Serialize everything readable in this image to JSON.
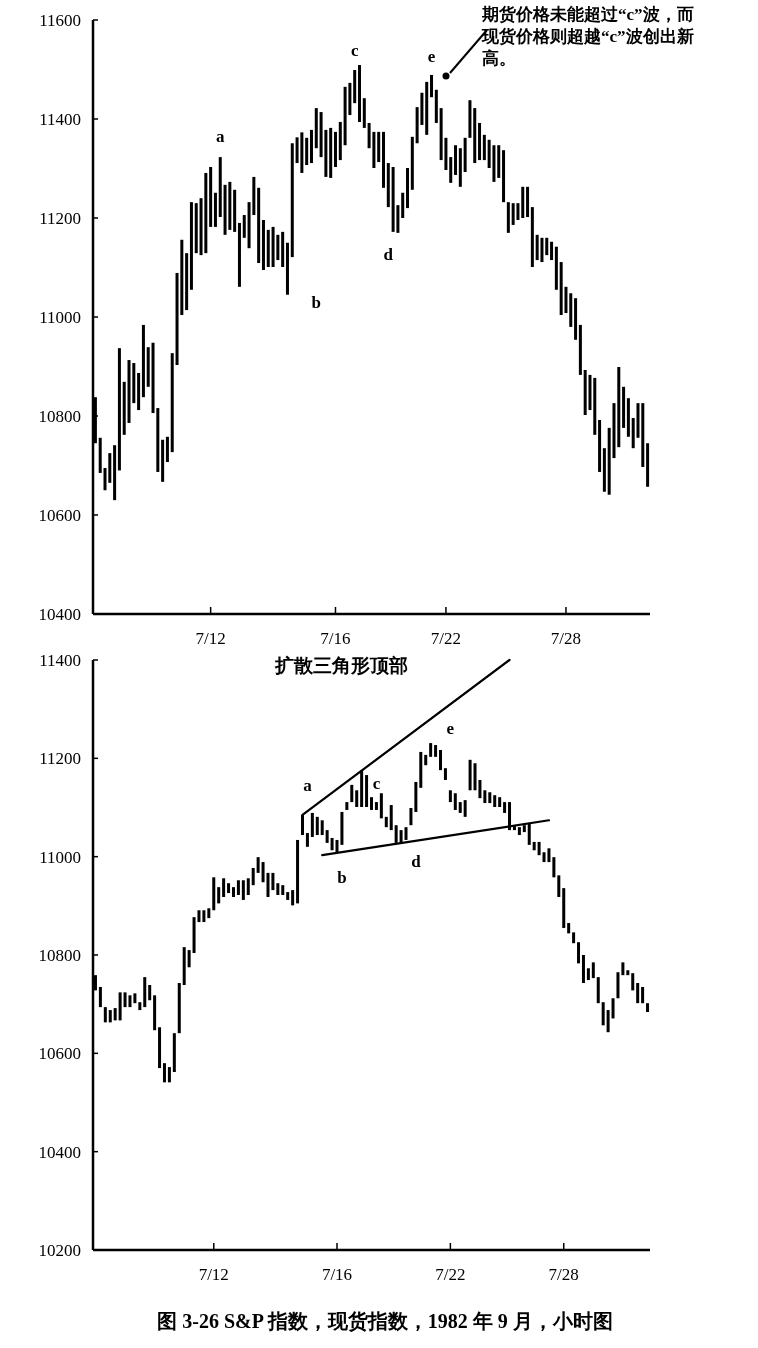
{
  "chart_data": [
    {
      "type": "bar",
      "ylim": [
        10400,
        11600
      ],
      "yticks": [
        10400,
        10600,
        10800,
        11000,
        11200,
        11400,
        11600
      ],
      "categories": [
        null,
        null,
        null,
        null,
        null,
        null,
        null,
        null,
        null,
        null,
        null,
        null,
        null,
        null,
        null,
        null,
        null,
        null,
        null,
        null,
        null,
        null,
        null,
        null,
        "7/12",
        null,
        null,
        null,
        null,
        null,
        null,
        null,
        null,
        null,
        null,
        null,
        null,
        null,
        null,
        null,
        null,
        null,
        null,
        null,
        null,
        null,
        null,
        null,
        null,
        null,
        "7/16",
        null,
        null,
        null,
        null,
        null,
        null,
        null,
        null,
        null,
        null,
        null,
        null,
        null,
        null,
        null,
        null,
        null,
        null,
        null,
        null,
        null,
        null,
        "7/22",
        null,
        null,
        null,
        null,
        null,
        null,
        null,
        null,
        null,
        null,
        null,
        null,
        null,
        null,
        null,
        null,
        null,
        null,
        null,
        null,
        null,
        null,
        null,
        null,
        "7/28",
        null,
        null,
        null,
        null,
        null,
        null,
        null,
        null,
        null,
        null,
        null,
        null,
        null,
        null,
        null,
        null,
        null
      ],
      "series": [
        {
          "color": "#000000",
          "base": [
            10745,
            10685,
            10650,
            10665,
            10630,
            10690,
            10762,
            10786,
            10826,
            10812,
            10838,
            10859,
            10806,
            10687,
            10667,
            10707,
            10727,
            10903,
            11004,
            11014,
            11055,
            11129,
            11125,
            11129,
            11182,
            11182,
            11202,
            11166,
            11176,
            11172,
            11061,
            11160,
            11139,
            11206,
            11109,
            11095,
            11101,
            11101,
            11115,
            11101,
            11045,
            11121,
            11311,
            11291,
            11307,
            11311,
            11341,
            11323,
            11283,
            11281,
            11303,
            11317,
            11347,
            11408,
            11432,
            11394,
            11382,
            11341,
            11301,
            11313,
            11261,
            11222,
            11172,
            11170,
            11200,
            11220,
            11257,
            11351,
            11388,
            11368,
            11444,
            11392,
            11317,
            11297,
            11271,
            11287,
            11263,
            11293,
            11362,
            11311,
            11317,
            11317,
            11301,
            11273,
            11281,
            11232,
            11170,
            11186,
            11196,
            11200,
            11202,
            11101,
            11115,
            11111,
            11125,
            11115,
            11055,
            11004,
            11008,
            10980,
            10954,
            10883,
            10802,
            10812,
            10762,
            10687,
            10647,
            10641,
            10715,
            10737,
            10776,
            10758,
            10735,
            10756,
            10697,
            10657
          ],
          "values": [
            93,
            71,
            45,
            60,
            111,
            247,
            107,
            127,
            81,
            75,
            146,
            80,
            142,
            129,
            85,
            51,
            200,
            186,
            152,
            115,
            177,
            101,
            115,
            162,
            121,
            69,
            121,
            101,
            97,
            85,
            129,
            46,
            93,
            77,
            152,
            101,
            75,
            81,
            51,
            71,
            105,
            230,
            52,
            82,
            55,
            67,
            81,
            91,
            95,
            101,
            71,
            77,
            118,
            65,
            67,
            115,
            60,
            51,
            73,
            61,
            113,
            89,
            131,
            56,
            51,
            81,
            107,
            73,
            65,
            107,
            45,
            67,
            105,
            65,
            52,
            60,
            78,
            69,
            76,
            111,
            75,
            51,
            57,
            74,
            66,
            105,
            62,
            44,
            34,
            63,
            61,
            121,
            51,
            49,
            35,
            37,
            87,
            107,
            53,
            68,
            84,
            101,
            91,
            71,
            115,
            105,
            88,
            135,
            111,
            162,
            83,
            78,
            61,
            70,
            129,
            88
          ]
        }
      ],
      "annotations": [
        "a",
        "b",
        "c",
        "d",
        "e",
        "期货价格未能超过“c”波，而现货价格则超越“c”波创出新高。"
      ]
    },
    {
      "type": "bar",
      "ylim": [
        10200,
        11400
      ],
      "yticks": [
        10200,
        10400,
        10600,
        10800,
        11000,
        11200,
        11400
      ],
      "categories": [
        null,
        null,
        null,
        null,
        null,
        null,
        null,
        null,
        null,
        null,
        null,
        null,
        null,
        null,
        null,
        null,
        null,
        null,
        null,
        null,
        null,
        null,
        null,
        null,
        "7/12",
        null,
        null,
        null,
        null,
        null,
        null,
        null,
        null,
        null,
        null,
        null,
        null,
        null,
        null,
        null,
        null,
        null,
        null,
        null,
        null,
        null,
        null,
        null,
        null,
        "7/16",
        null,
        null,
        null,
        null,
        null,
        null,
        null,
        null,
        null,
        null,
        null,
        null,
        null,
        null,
        null,
        null,
        null,
        null,
        null,
        null,
        null,
        null,
        "7/22",
        null,
        null,
        null,
        null,
        null,
        null,
        null,
        null,
        null,
        null,
        null,
        null,
        null,
        null,
        null,
        null,
        null,
        null,
        null,
        null,
        null,
        null,
        "7/28",
        null,
        null,
        null,
        null,
        null,
        null,
        null,
        null,
        null,
        null,
        null,
        null,
        null,
        null,
        null,
        null,
        null
      ],
      "series": [
        {
          "color": "#000000",
          "base": [
            10728,
            10694,
            10663,
            10663,
            10667,
            10667,
            10694,
            10694,
            10702,
            10688,
            10694,
            10708,
            10647,
            10570,
            10541,
            10541,
            10562,
            10641,
            10739,
            10775,
            10804,
            10867,
            10867,
            10875,
            10891,
            10905,
            10918,
            10926,
            10918,
            10922,
            10912,
            10922,
            10942,
            10967,
            10948,
            10918,
            10932,
            10922,
            10922,
            10912,
            10901,
            10905,
            11044,
            11020,
            11040,
            11044,
            11044,
            11028,
            11013,
            11009,
            11024,
            11095,
            11111,
            11101,
            11101,
            11101,
            11095,
            11095,
            11078,
            11060,
            11054,
            11028,
            11028,
            11034,
            11064,
            11091,
            11140,
            11186,
            11203,
            11203,
            11176,
            11156,
            11111,
            11095,
            11089,
            11081,
            11135,
            11135,
            11119,
            11109,
            11109,
            11101,
            11101,
            11089,
            11054,
            11054,
            11044,
            11050,
            11024,
            11013,
            11003,
            10989,
            10989,
            10958,
            10918,
            10855,
            10844,
            10824,
            10783,
            10743,
            10749,
            10753,
            10702,
            10657,
            10643,
            10671,
            10712,
            10759,
            10759,
            10728,
            10702,
            10702,
            10684
          ],
          "values": [
            31,
            41,
            31,
            25,
            25,
            57,
            30,
            24,
            20,
            16,
            61,
            31,
            71,
            83,
            39,
            31,
            79,
            102,
            77,
            35,
            73,
            24,
            24,
            20,
            67,
            33,
            38,
            20,
            20,
            30,
            40,
            34,
            35,
            32,
            41,
            49,
            35,
            24,
            20,
            16,
            31,
            129,
            41,
            28,
            49,
            37,
            30,
            26,
            25,
            25,
            67,
            16,
            35,
            34,
            75,
            65,
            26,
            16,
            51,
            21,
            51,
            36,
            26,
            26,
            35,
            61,
            73,
            21,
            28,
            24,
            41,
            24,
            24,
            34,
            22,
            34,
            62,
            55,
            37,
            26,
            22,
            24,
            20,
            22,
            57,
            10,
            16,
            14,
            44,
            17,
            27,
            20,
            28,
            41,
            44,
            81,
            21,
            22,
            43,
            57,
            24,
            32,
            53,
            47,
            45,
            41,
            53,
            26,
            10,
            35,
            41,
            33,
            18
          ]
        },
        {
          "type": "line",
          "color": "#000000",
          "values": [
            null,
            null,
            null,
            null,
            null,
            null,
            null,
            null,
            null,
            null,
            null,
            null,
            null,
            null,
            null,
            null,
            null,
            null,
            null,
            null,
            null,
            null,
            null,
            null,
            null,
            null,
            null,
            null,
            null,
            null,
            null,
            null,
            null,
            null,
            null,
            null,
            null,
            null,
            null,
            null,
            null,
            null,
            11085,
            null,
            null,
            null,
            null,
            null,
            null,
            null,
            null,
            null,
            null,
            null,
            null,
            null,
            null,
            null,
            null,
            null,
            null,
            null,
            null,
            null,
            null,
            null,
            null,
            null,
            null,
            null,
            null,
            null,
            null,
            null,
            null,
            null,
            null,
            null,
            null,
            null,
            null,
            null,
            null,
            null,
            11400,
            null,
            null,
            null,
            null,
            null,
            null,
            null,
            null,
            null,
            null,
            null,
            null,
            null,
            null,
            null,
            null,
            null,
            null,
            null,
            null,
            null,
            null,
            null,
            null,
            null,
            null,
            null,
            null
          ]
        },
        {
          "type": "line",
          "color": "#000000",
          "values": [
            null,
            null,
            null,
            null,
            null,
            null,
            null,
            null,
            null,
            null,
            null,
            null,
            null,
            null,
            null,
            null,
            null,
            null,
            null,
            null,
            null,
            null,
            null,
            null,
            null,
            null,
            null,
            null,
            null,
            null,
            null,
            null,
            null,
            null,
            null,
            null,
            null,
            null,
            null,
            null,
            null,
            null,
            null,
            null,
            null,
            null,
            11003,
            null,
            null,
            null,
            null,
            null,
            null,
            null,
            null,
            null,
            null,
            null,
            null,
            null,
            null,
            null,
            null,
            null,
            null,
            null,
            null,
            null,
            null,
            null,
            null,
            null,
            null,
            null,
            null,
            null,
            null,
            null,
            null,
            null,
            null,
            null,
            null,
            null,
            null,
            null,
            null,
            null,
            null,
            null,
            null,
            null,
            11074,
            null,
            null,
            null,
            null,
            null,
            null,
            null,
            null,
            null,
            null,
            null,
            null,
            null,
            null,
            null,
            null,
            null,
            null,
            null,
            null
          ]
        }
      ],
      "annotations": [
        "扩散三角形顶部",
        "a",
        "b",
        "c",
        "d",
        "e",
        "图 3-26  S&P 指数，现货指数，1982 年 9 月，小时图"
      ]
    }
  ]
}
